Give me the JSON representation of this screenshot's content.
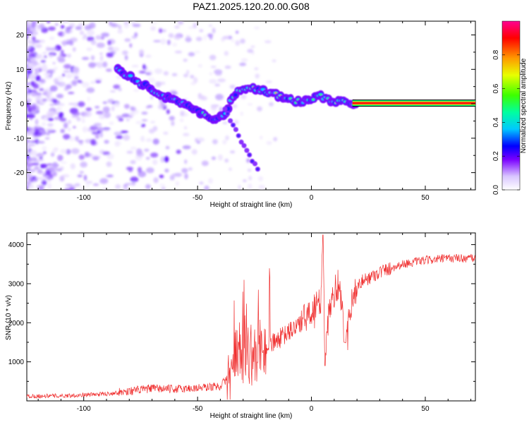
{
  "title": "PAZ1.2025.120.20.00.G08",
  "chart_data": [
    {
      "type": "heatmap",
      "xlabel": "Height of straight line (km)",
      "ylabel": "Frequency (Hz)",
      "xlim": [
        -125,
        72
      ],
      "ylim": [
        -25,
        24
      ],
      "xticks": [
        -100,
        -50,
        0,
        50
      ],
      "yticks": [
        20,
        10,
        0,
        -10,
        -20
      ],
      "colorbar": {
        "label": "Normalized spectral amplitude",
        "range": [
          0,
          1
        ],
        "ticks": [
          "0.0",
          "0.2",
          "0.4",
          "0.6",
          "0.8"
        ],
        "colors": [
          "#ffffff",
          "#d0b4ff",
          "#6a00ff",
          "#0000ff",
          "#00c8ff",
          "#00ff9a",
          "#40ff00",
          "#ffd700",
          "#ff6a00",
          "#ff0000",
          "#ff0090"
        ]
      },
      "ridge": [
        {
          "x": -85,
          "y": 10
        },
        {
          "x": -80,
          "y": 8
        },
        {
          "x": -75,
          "y": 6
        },
        {
          "x": -70,
          "y": 4
        },
        {
          "x": -65,
          "y": 2
        },
        {
          "x": -60,
          "y": 1
        },
        {
          "x": -55,
          "y": 0
        },
        {
          "x": -50,
          "y": -2
        },
        {
          "x": -45,
          "y": -4
        },
        {
          "x": -42,
          "y": -5
        },
        {
          "x": -38,
          "y": -3
        },
        {
          "x": -36,
          "y": 0
        },
        {
          "x": -33,
          "y": 3
        },
        {
          "x": -30,
          "y": 4.5
        },
        {
          "x": -25,
          "y": 4.5
        },
        {
          "x": -20,
          "y": 3.5
        },
        {
          "x": -15,
          "y": 2.5
        },
        {
          "x": -10,
          "y": 1.5
        },
        {
          "x": -5,
          "y": 0.5
        },
        {
          "x": 0,
          "y": 1
        },
        {
          "x": 3,
          "y": 2.5
        },
        {
          "x": 6,
          "y": 1.5
        },
        {
          "x": 10,
          "y": 0.8
        },
        {
          "x": 15,
          "y": 0.5
        },
        {
          "x": 20,
          "y": 0.2
        },
        {
          "x": 72,
          "y": 0.2
        }
      ],
      "branch": [
        {
          "x": -38,
          "y": -2
        },
        {
          "x": -33,
          "y": -8
        },
        {
          "x": -29,
          "y": -13
        },
        {
          "x": -26,
          "y": -16
        },
        {
          "x": -23,
          "y": -20
        }
      ]
    },
    {
      "type": "line",
      "xlabel": "Height of straight line (km)",
      "ylabel": "SNR (10 * v/v)",
      "xlim": [
        -125,
        72
      ],
      "ylim": [
        0,
        4300
      ],
      "xticks": [
        -100,
        -50,
        0,
        50
      ],
      "yticks": [
        1000,
        2000,
        3000,
        4000
      ],
      "color": "#f03030",
      "series": [
        {
          "x": -125,
          "y": 120
        },
        {
          "x": -110,
          "y": 130
        },
        {
          "x": -100,
          "y": 150
        },
        {
          "x": -90,
          "y": 180
        },
        {
          "x": -80,
          "y": 250
        },
        {
          "x": -70,
          "y": 320
        },
        {
          "x": -60,
          "y": 300
        },
        {
          "x": -50,
          "y": 330
        },
        {
          "x": -40,
          "y": 380
        },
        {
          "x": -35,
          "y": 700
        },
        {
          "x": -32,
          "y": 1300
        },
        {
          "x": -28,
          "y": 1200
        },
        {
          "x": -25,
          "y": 1150
        },
        {
          "x": -20,
          "y": 1350
        },
        {
          "x": -15,
          "y": 1550
        },
        {
          "x": -10,
          "y": 1750
        },
        {
          "x": -5,
          "y": 2000
        },
        {
          "x": 0,
          "y": 2200
        },
        {
          "x": 2,
          "y": 2700
        },
        {
          "x": 4,
          "y": 2400
        },
        {
          "x": 5,
          "y": 4250
        },
        {
          "x": 6,
          "y": 900
        },
        {
          "x": 8,
          "y": 2500
        },
        {
          "x": 12,
          "y": 3000
        },
        {
          "x": 15,
          "y": 1500
        },
        {
          "x": 18,
          "y": 2700
        },
        {
          "x": 22,
          "y": 3050
        },
        {
          "x": 30,
          "y": 3300
        },
        {
          "x": 40,
          "y": 3500
        },
        {
          "x": 50,
          "y": 3600
        },
        {
          "x": 60,
          "y": 3650
        },
        {
          "x": 72,
          "y": 3650
        }
      ]
    }
  ]
}
